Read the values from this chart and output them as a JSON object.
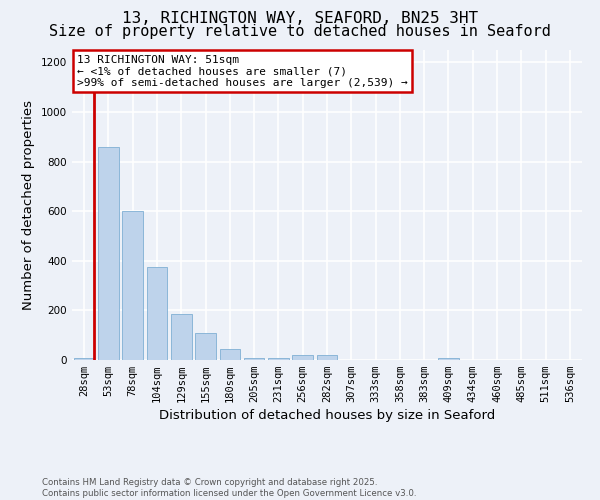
{
  "title_line1": "13, RICHINGTON WAY, SEAFORD, BN25 3HT",
  "title_line2": "Size of property relative to detached houses in Seaford",
  "xlabel": "Distribution of detached houses by size in Seaford",
  "ylabel": "Number of detached properties",
  "categories": [
    "28sqm",
    "53sqm",
    "78sqm",
    "104sqm",
    "129sqm",
    "155sqm",
    "180sqm",
    "205sqm",
    "231sqm",
    "256sqm",
    "282sqm",
    "307sqm",
    "333sqm",
    "358sqm",
    "383sqm",
    "409sqm",
    "434sqm",
    "460sqm",
    "485sqm",
    "511sqm",
    "536sqm"
  ],
  "values": [
    10,
    860,
    600,
    375,
    185,
    110,
    45,
    10,
    10,
    20,
    20,
    0,
    0,
    0,
    0,
    10,
    0,
    0,
    0,
    0,
    0
  ],
  "bar_color": "#bed3eb",
  "bar_edge_color": "#7fafd4",
  "highlight_line_color": "#cc0000",
  "annotation_text_line1": "13 RICHINGTON WAY: 51sqm",
  "annotation_text_line2": "← <1% of detached houses are smaller (7)",
  "annotation_text_line3": ">99% of semi-detached houses are larger (2,539) →",
  "annotation_box_color": "#cc0000",
  "ylim": [
    0,
    1250
  ],
  "yticks": [
    0,
    200,
    400,
    600,
    800,
    1000,
    1200
  ],
  "footer_line1": "Contains HM Land Registry data © Crown copyright and database right 2025.",
  "footer_line2": "Contains public sector information licensed under the Open Government Licence v3.0.",
  "background_color": "#edf1f8",
  "grid_color": "#ffffff",
  "title_fontsize": 11.5,
  "axis_label_fontsize": 9.5,
  "tick_fontsize": 7.5,
  "annotation_fontsize": 8
}
